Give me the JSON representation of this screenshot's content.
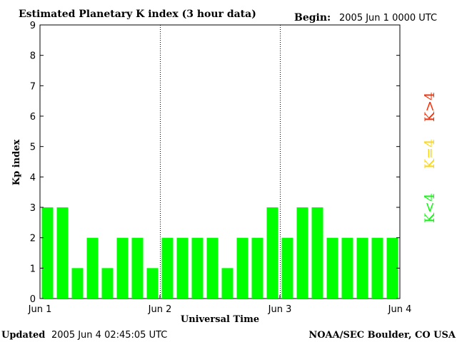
{
  "header": {
    "title": "Estimated Planetary K index (3 hour data)",
    "begin_label": "Begin:",
    "begin_value": "2005 Jun 1 0000 UTC"
  },
  "footer": {
    "updated_label": "Updated",
    "updated_value": "2005 Jun  4 02:45:05 UTC",
    "credit": "NOAA/SEC Boulder, CO USA"
  },
  "colors": {
    "below_4": "#00ff00",
    "equal_4": "#ffd700",
    "above_4": "#ff2a00",
    "axis": "#000000"
  },
  "chart_data": {
    "type": "bar",
    "xlabel": "Universal Time",
    "ylabel": "Kp index",
    "ylim": [
      0,
      9
    ],
    "yticks": [
      0,
      1,
      2,
      3,
      4,
      5,
      6,
      7,
      8,
      9
    ],
    "xtick_labels": [
      "Jun 1",
      "Jun 2",
      "Jun 3",
      "Jun 4"
    ],
    "day_dividers": [
      "Jun 2",
      "Jun 3"
    ],
    "interval_hours": 3,
    "values": [
      3,
      3,
      1,
      2,
      1,
      2,
      2,
      1,
      2,
      2,
      2,
      2,
      1,
      2,
      2,
      3,
      2,
      3,
      3,
      2,
      2,
      2,
      2,
      2
    ],
    "legend": [
      {
        "label": "K<4",
        "color": "#00ff00"
      },
      {
        "label": "K=4",
        "color": "#ffd700"
      },
      {
        "label": "K>4",
        "color": "#ff2a00"
      }
    ]
  }
}
